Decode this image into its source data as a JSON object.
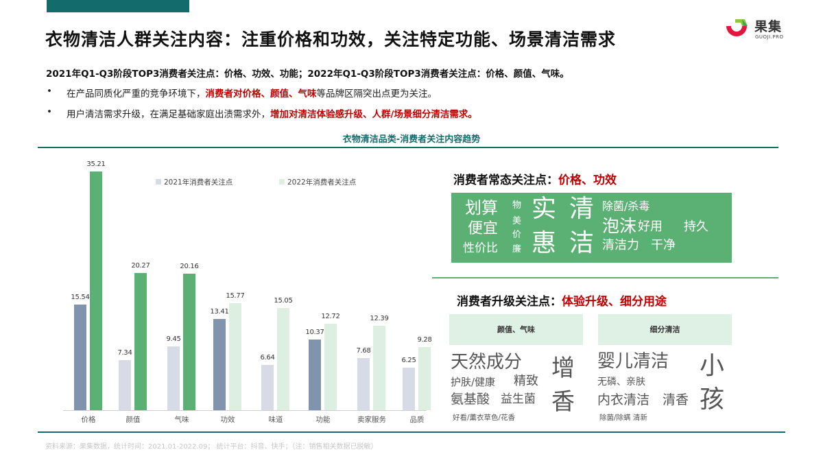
{
  "page": {
    "title": "衣物清洁人群关注内容：注重价格和功效，关注特定功能、场景清洁需求",
    "summary": "2021年Q1-Q3阶段TOP3消费者关注点：价格、功效、功能；2022年Q1-Q3阶段TOP3消费者关注点：价格、颜值、气味。",
    "bullets": [
      {
        "dot": "•",
        "pre": "在产品同质化严重的竞争环境下，",
        "highlight": "消费者对价格、颜值、气味",
        "post": "等品牌区隔突出点更为关注。"
      },
      {
        "dot": "•",
        "pre": "用户清洁需求升级，在满足基础家庭出渍需求外，",
        "highlight": "增加对清洁体验感升级、人群/场景细分清洁需求。",
        "post": ""
      }
    ],
    "footnote": "资料来源：果集数据，统计时间：2021.01-2022.09；   统计平台：抖音、快手；（注：销售相关数据已脱敏）"
  },
  "logo": {
    "name": "果集",
    "sub": "GUOJI.PRO"
  },
  "colors": {
    "brand_teal": "#146b6b",
    "accent_red": "#c00000",
    "green_box": "#5bb173",
    "light_green": "#dff0e4",
    "bar_2021_top": "#8094ae",
    "bar_2021": "#d6dbe6",
    "bar_2022_top": "#5bb173",
    "bar_2022": "#dcefe1"
  },
  "chart_data": {
    "type": "bar",
    "title": "衣物清洁品类-消费者关注内容趋势",
    "categories": [
      "价格",
      "颜值",
      "气味",
      "功效",
      "味道",
      "功能",
      "卖家服务",
      "品质"
    ],
    "series": [
      {
        "name": "2021年消费者关注点",
        "values": [
          15.54,
          7.34,
          9.45,
          13.41,
          6.64,
          10.37,
          7.68,
          6.25
        ],
        "highlight": [
          true,
          false,
          false,
          true,
          false,
          true,
          false,
          false
        ]
      },
      {
        "name": "2022年消费者关注点",
        "values": [
          35.21,
          20.27,
          20.16,
          15.77,
          15.05,
          12.72,
          12.39,
          9.28
        ],
        "highlight": [
          true,
          true,
          true,
          false,
          false,
          false,
          false,
          false
        ]
      }
    ],
    "value_labels": {
      "2021": [
        "15.54",
        "7.34",
        "9.45",
        "13.41",
        "6.64",
        "10.37",
        "7.68",
        "6.25"
      ],
      "2022": [
        "35.21",
        "20.27",
        "20.16",
        "15.77",
        "15.05",
        "12.72",
        "12.39",
        "9.28"
      ]
    },
    "xlabel": "",
    "ylabel": "",
    "ylim": [
      0,
      36
    ],
    "grid": false,
    "legend_position": "top-inside"
  },
  "normal_focus": {
    "label": "消费者常态关注点：",
    "highlight": "价格、功效",
    "words": [
      "划算",
      "便宜",
      "性价比",
      "物",
      "美",
      "价",
      "廉",
      "实",
      "惠",
      "清",
      "洁",
      "除菌/杀毒",
      "泡沫",
      "好用",
      "持久",
      "清洁力",
      "干净"
    ]
  },
  "upgrade_focus": {
    "label": "消费者升级关注点：",
    "highlight": "体验升级、细分用途",
    "cards": [
      {
        "title": "颜值、气味",
        "words": [
          "天然成分",
          "护肤/健康",
          "精致",
          "氨基酸",
          "益生菌",
          "好看/薰衣草色/花香",
          "增",
          "香"
        ]
      },
      {
        "title": "细分清洁",
        "words": [
          "婴儿清洁",
          "无磷、亲肤",
          "内衣清洁",
          "清香",
          "除菌/除螨 清新",
          "小",
          "孩"
        ]
      }
    ]
  }
}
